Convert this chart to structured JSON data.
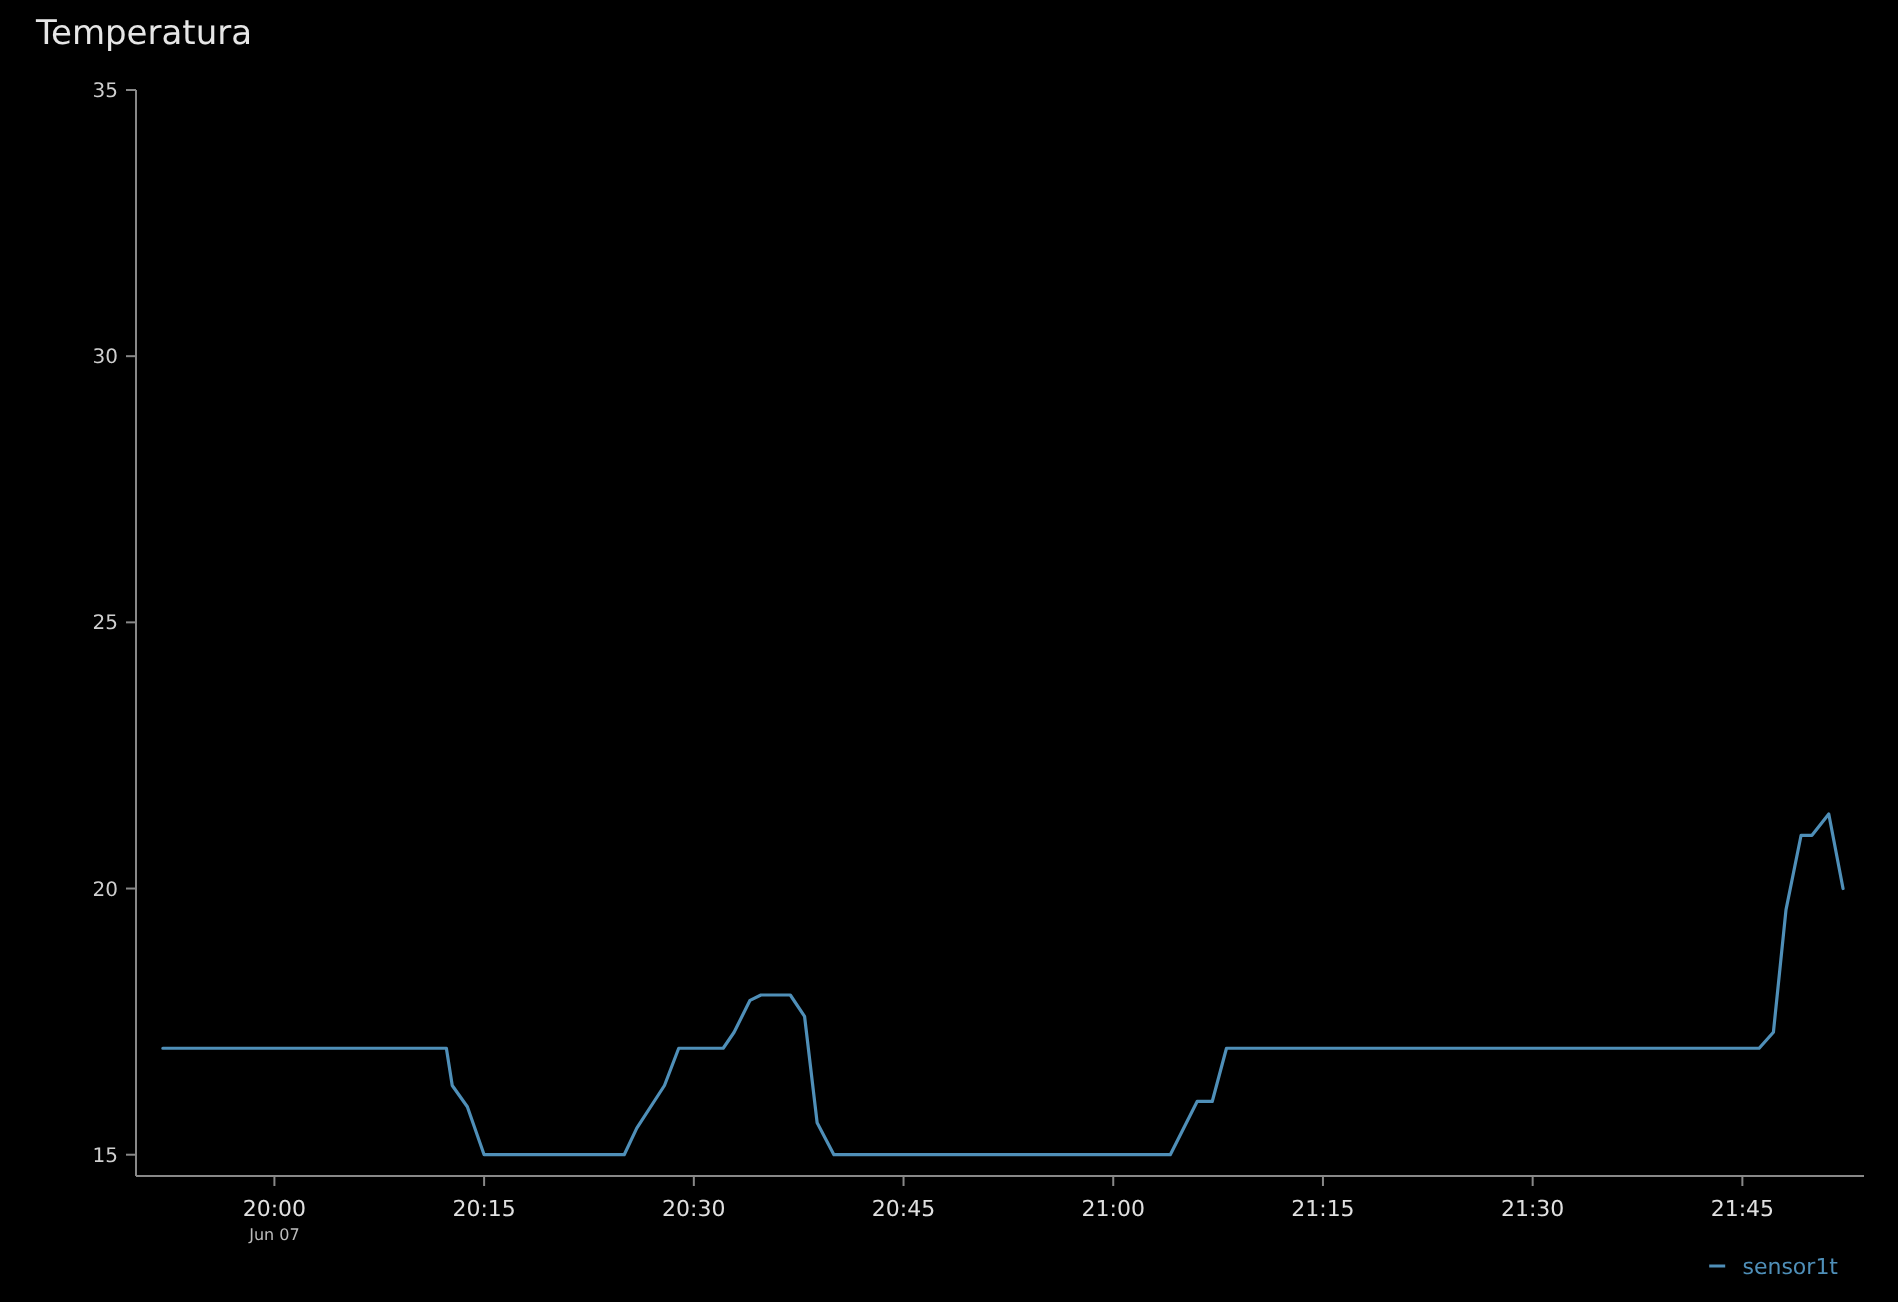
{
  "chart_data": {
    "type": "line",
    "title": "Temperatura",
    "x": [
      19.867,
      20.205,
      20.212,
      20.23,
      20.25,
      20.417,
      20.432,
      20.465,
      20.482,
      20.535,
      20.548,
      20.567,
      20.58,
      20.615,
      20.632,
      20.647,
      20.667,
      21.068,
      21.1,
      21.118,
      21.135,
      21.77,
      21.787,
      21.802,
      21.82,
      21.833,
      21.853,
      21.87
    ],
    "series": [
      {
        "name": "sensor1t",
        "color": "#4f8fb8",
        "values": [
          17,
          17,
          16.3,
          15.9,
          15,
          15,
          15.5,
          16.3,
          17,
          17,
          17.3,
          17.9,
          18,
          18,
          17.6,
          15.6,
          15,
          15,
          16,
          16,
          17,
          17,
          17.3,
          19.6,
          21,
          21,
          21.4,
          20
        ]
      }
    ],
    "xlim": [
      19.835,
      21.895
    ],
    "xticks": [
      {
        "value": 20,
        "label": "20:00\nJun 07"
      },
      {
        "value": 20.25,
        "label": "20:15"
      },
      {
        "value": 20.5,
        "label": "20:30"
      },
      {
        "value": 20.75,
        "label": "20:45"
      },
      {
        "value": 21,
        "label": "21:00"
      },
      {
        "value": 21.25,
        "label": "21:15"
      },
      {
        "value": 21.5,
        "label": "21:30"
      },
      {
        "value": 21.75,
        "label": "21:45"
      }
    ],
    "ylim": [
      14.6,
      35
    ],
    "yticks": [
      15,
      20,
      25,
      30,
      35
    ],
    "grid": false,
    "legend": "bottom right",
    "marker": "none",
    "line_style": "solid"
  }
}
